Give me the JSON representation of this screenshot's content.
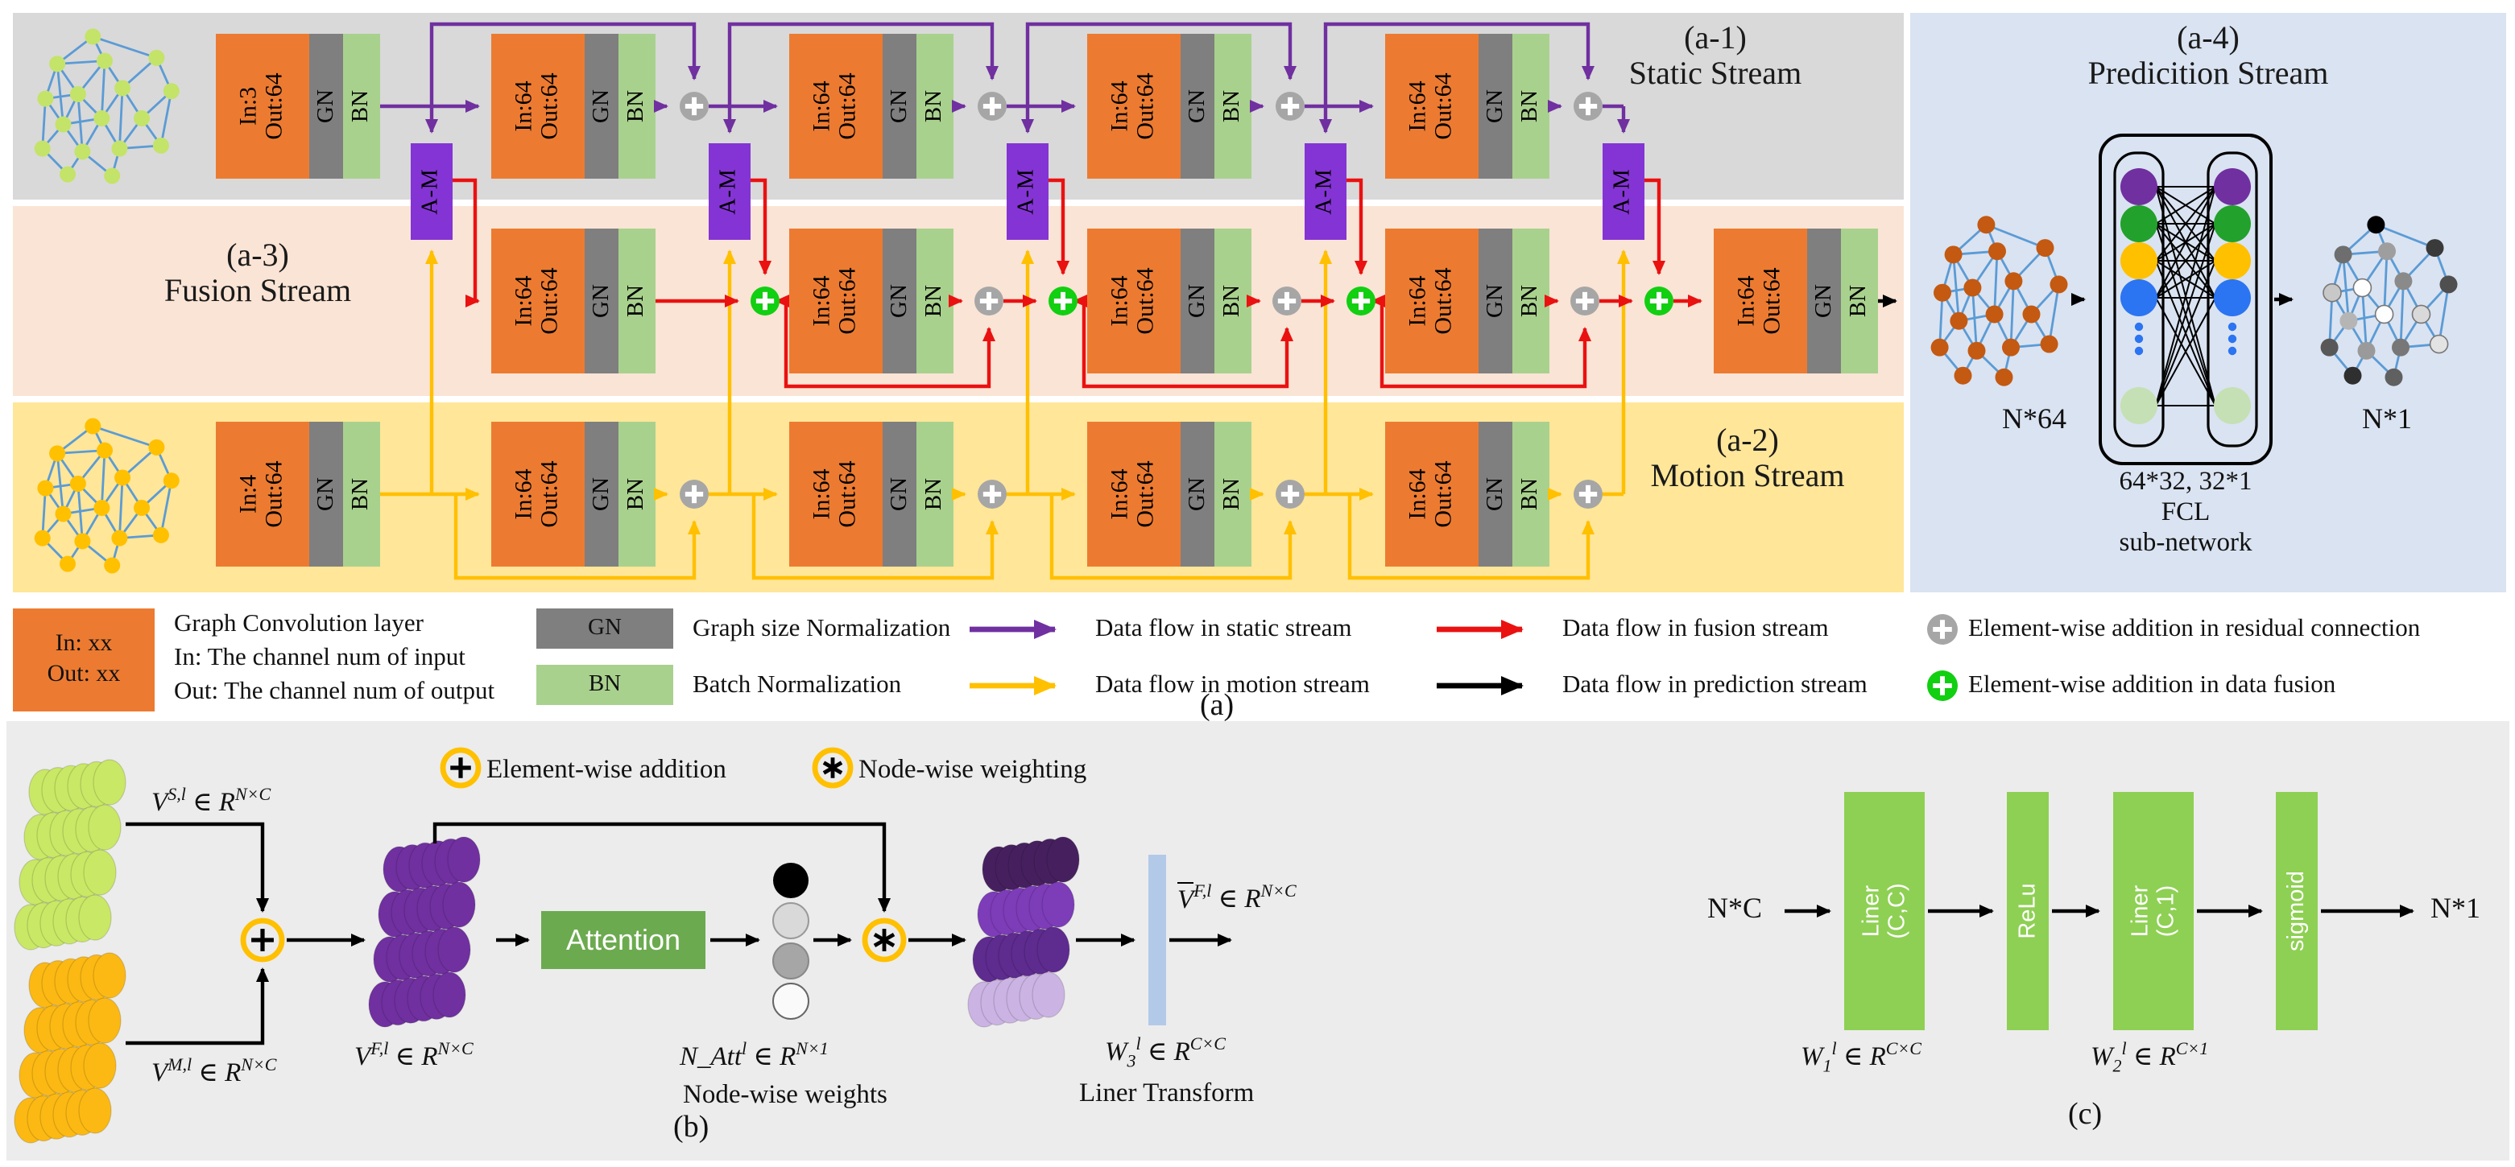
{
  "colors": {
    "band_static": "#d9d9d9",
    "band_fusion": "#fae4d5",
    "band_motion": "#ffe699",
    "band_prediction": "#dae3f1",
    "panel_bottom": "#ececec",
    "conv_orange": "#ec7b31",
    "gn_gray": "#7f7f7f",
    "bn_green": "#a9d18e",
    "am_purple": "#8434d4",
    "flow_static": "#7030a0",
    "flow_motion": "#ffc000",
    "flow_fusion": "#ea1111",
    "flow_prediction": "#000000",
    "plus_residual": "#a6a6a6",
    "plus_fusion": "#11cf11",
    "graph_edge": "#5b9bd5",
    "node_static": "#c4e369",
    "node_motion": "#ffc000",
    "node_pred_in": "#c45911",
    "attention_green": "#6caa4f",
    "c_bar_green": "#8ed053",
    "w3_bar_blue": "#b3c9e8",
    "stack_static": "#c9e866",
    "stack_motion": "#fcb913",
    "stack_fused": "#7030a0",
    "stack_weighted": [
      "#46205e",
      "#7d3cb8",
      "#5e2b8f",
      "#cbb3e3"
    ],
    "fcl_nodes": [
      "#7030a0",
      "#22a12c",
      "#ffc000",
      "#2b74f2"
    ],
    "fcl_node_last": "#c5e0b4",
    "weight_circles": [
      "#000000",
      "#d9d9d9",
      "#a6a6a6",
      "#fafafa"
    ],
    "n1_nodes": [
      "#000000",
      "#6e6e6e",
      "#9e9e9e",
      "#3a3a3a",
      "#c8c8c8",
      "#ffffff",
      "#8a8a8a",
      "#4f4f4f",
      "#b5b5b5",
      "#ffffff",
      "#d9d9d9",
      "#585858",
      "#9a9a9a",
      "#777777",
      "#e3e3e3",
      "#2f2f2f",
      "#606060"
    ]
  },
  "panel_a": {
    "caption": "(a)",
    "gn": "GN",
    "bn": "BN",
    "am": "A-M",
    "static": {
      "tag": "(a-1)",
      "title": "Static Stream",
      "blocks": [
        {
          "l1": "In:3",
          "l2": "Out:64"
        },
        {
          "l1": "In:64",
          "l2": "Out:64"
        },
        {
          "l1": "In:64",
          "l2": "Out:64"
        },
        {
          "l1": "In:64",
          "l2": "Out:64"
        },
        {
          "l1": "In:64",
          "l2": "Out:64"
        }
      ]
    },
    "fusion": {
      "tag": "(a-3)",
      "title": "Fusion Stream",
      "blocks": [
        {
          "l1": "In:64",
          "l2": "Out:64"
        },
        {
          "l1": "In:64",
          "l2": "Out:64"
        },
        {
          "l1": "In:64",
          "l2": "Out:64"
        },
        {
          "l1": "In:64",
          "l2": "Out:64"
        },
        {
          "l1": "In:64",
          "l2": "Out:64"
        }
      ]
    },
    "motion": {
      "tag": "(a-2)",
      "title": "Motion Stream",
      "blocks": [
        {
          "l1": "In:4",
          "l2": "Out:64"
        },
        {
          "l1": "In:64",
          "l2": "Out:64"
        },
        {
          "l1": "In:64",
          "l2": "Out:64"
        },
        {
          "l1": "In:64",
          "l2": "Out:64"
        },
        {
          "l1": "In:64",
          "l2": "Out:64"
        }
      ]
    },
    "prediction": {
      "tag": "(a-4)",
      "title": "Predicition Stream",
      "input_label": "N*64",
      "output_label": "N*1",
      "fcl_dims": "64*32, 32*1",
      "fcl_name": "FCL",
      "fcl_sub": "sub-network"
    },
    "legend": {
      "conv_box": {
        "l1": "In: xx",
        "l2": "Out: xx"
      },
      "conv_desc": [
        "Graph Convolution layer",
        "In: The channel num of input",
        "Out: The channel num of output"
      ],
      "gn": {
        "label": "GN",
        "desc": "Graph size Normalization"
      },
      "bn": {
        "label": "BN",
        "desc": "Batch Normalization"
      },
      "arrows": [
        {
          "color": "#7030a0",
          "desc": "Data flow in static stream"
        },
        {
          "color": "#ffc000",
          "desc": "Data flow in motion stream"
        },
        {
          "color": "#ea1111",
          "desc": "Data flow in fusion stream"
        },
        {
          "color": "#000000",
          "desc": "Data flow in prediction stream"
        }
      ],
      "plusses": [
        {
          "color": "#a6a6a6",
          "desc": "Element-wise addition in residual connection"
        },
        {
          "color": "#11cf11",
          "desc": "Element-wise addition in data fusion"
        }
      ]
    }
  },
  "panel_b": {
    "caption": "(b)",
    "legend_plus": "Element-wise addition",
    "legend_star": "Node-wise weighting",
    "attention": "Attention",
    "natt_caption": "Node-wise weights",
    "w3_caption": "Liner Transform",
    "labels": {
      "vs": {
        "v": "V",
        "sup": "S,l",
        "r": "R",
        "exp": "N×C"
      },
      "vm": {
        "v": "V",
        "sup": "M,l",
        "r": "R",
        "exp": "N×C"
      },
      "vf": {
        "v": "V",
        "sup": "F,l",
        "r": "R",
        "exp": "N×C"
      },
      "natt": {
        "v": "N_Att",
        "sup": "l",
        "r": "R",
        "exp": "N×1"
      },
      "w3": {
        "v": "W",
        "sub": "3",
        "sup": "l",
        "r": "R",
        "exp": "C×C"
      },
      "vbar": {
        "v": "V",
        "bar": true,
        "sup": "F,l",
        "r": "R",
        "exp": "N×C"
      }
    }
  },
  "panel_c": {
    "caption": "(c)",
    "input_label": "N*C",
    "output_label": "N*1",
    "bars": [
      {
        "l1": "Liner",
        "l2": "(C,C)"
      },
      {
        "l1": "ReLu",
        "l2": ""
      },
      {
        "l1": "Liner",
        "l2": "(C,1)"
      },
      {
        "l1": "sigmoid",
        "l2": ""
      }
    ],
    "labels": {
      "w1": {
        "v": "W",
        "sub": "1",
        "sup": "l",
        "r": "R",
        "exp": "C×C"
      },
      "w2": {
        "v": "W",
        "sub": "2",
        "sup": "l",
        "r": "R",
        "exp": "C×1"
      }
    }
  }
}
